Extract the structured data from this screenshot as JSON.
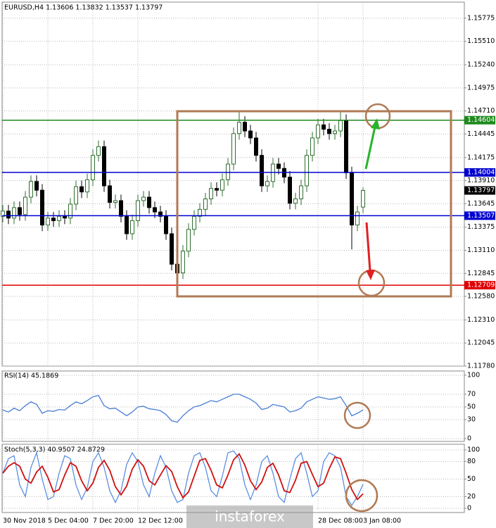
{
  "chart_data": [
    {
      "type": "candlestick",
      "title": "EURUSD,H4  1.13606 1.13832 1.13537 1.13797",
      "categories": [
        "30 Nov 2018",
        null,
        null,
        null,
        null,
        null,
        null,
        null,
        "5 Dec 04:00",
        null,
        null,
        null,
        null,
        null,
        null,
        null,
        "7 Dec 20:00",
        null,
        null,
        null,
        null,
        null,
        null,
        null,
        "12 Dec 12:00",
        null,
        null,
        null,
        null,
        null,
        null,
        null,
        null,
        null,
        null,
        null,
        null,
        null,
        null,
        null,
        null,
        null,
        null,
        null,
        null,
        null,
        null,
        null,
        null,
        null,
        null,
        null,
        null,
        null,
        null,
        null,
        "28 Dec 08:00",
        null,
        null,
        null,
        null,
        null,
        null,
        null,
        "3 Jan 08:00"
      ],
      "open": [
        1.135,
        1.1356,
        1.1348,
        1.136,
        1.1352,
        1.1372,
        1.139,
        1.138,
        1.134,
        1.1348,
        1.1345,
        1.135,
        1.1348,
        1.1364,
        1.1384,
        1.1378,
        1.1392,
        1.142,
        1.143,
        1.1385,
        1.1366,
        1.1368,
        1.135,
        1.133,
        1.1345,
        1.1368,
        1.1372,
        1.136,
        1.1355,
        1.135,
        1.133,
        1.1295,
        1.1285,
        1.131,
        1.1335,
        1.135,
        1.1358,
        1.137,
        1.1382,
        1.138,
        1.1392,
        1.141,
        1.1445,
        1.1458,
        1.1448,
        1.144,
        1.142,
        1.1385,
        1.139,
        1.141,
        1.1405,
        1.1395,
        1.1365,
        1.137,
        1.1385,
        1.142,
        1.144,
        1.1455,
        1.145,
        1.1445,
        1.1448,
        1.146,
        1.14,
        1.134,
        1.13606
      ],
      "high": [
        1.1363,
        1.1363,
        1.1367,
        1.1367,
        1.1379,
        1.1397,
        1.1397,
        1.1387,
        1.1355,
        1.1355,
        1.1357,
        1.1357,
        1.1371,
        1.1391,
        1.1391,
        1.1399,
        1.1427,
        1.1437,
        1.1437,
        1.1392,
        1.1375,
        1.1375,
        1.1357,
        1.1352,
        1.1375,
        1.1379,
        1.1379,
        1.1367,
        1.1362,
        1.1357,
        1.1337,
        1.1302,
        1.1317,
        1.1342,
        1.1357,
        1.1365,
        1.1377,
        1.1389,
        1.1389,
        1.1399,
        1.1417,
        1.1452,
        1.147,
        1.1465,
        1.1455,
        1.1447,
        1.1427,
        1.1397,
        1.1417,
        1.1417,
        1.1412,
        1.1402,
        1.1377,
        1.1392,
        1.1427,
        1.1447,
        1.1462,
        1.1462,
        1.1457,
        1.1455,
        1.147,
        1.1467,
        1.1407,
        1.1362,
        1.13832
      ],
      "low": [
        1.1343,
        1.1341,
        1.1341,
        1.1345,
        1.1345,
        1.1365,
        1.1373,
        1.1333,
        1.1333,
        1.1338,
        1.1338,
        1.1341,
        1.1341,
        1.1357,
        1.1371,
        1.1371,
        1.1385,
        1.1413,
        1.1378,
        1.1359,
        1.1359,
        1.1343,
        1.1323,
        1.1323,
        1.1338,
        1.1361,
        1.1353,
        1.1348,
        1.1343,
        1.1323,
        1.1288,
        1.1271,
        1.1278,
        1.1303,
        1.1328,
        1.1343,
        1.1351,
        1.1363,
        1.1373,
        1.1373,
        1.1385,
        1.1403,
        1.1438,
        1.1441,
        1.1433,
        1.1413,
        1.1378,
        1.1378,
        1.1383,
        1.1398,
        1.1388,
        1.1358,
        1.1358,
        1.1363,
        1.1378,
        1.1413,
        1.1433,
        1.1443,
        1.1438,
        1.1438,
        1.1441,
        1.1393,
        1.1312,
        1.1333,
        1.13537
      ],
      "close": [
        1.1356,
        1.1348,
        1.136,
        1.1352,
        1.1372,
        1.139,
        1.138,
        1.134,
        1.1348,
        1.1345,
        1.135,
        1.1348,
        1.1364,
        1.1384,
        1.1378,
        1.1392,
        1.142,
        1.143,
        1.1385,
        1.1366,
        1.1368,
        1.135,
        1.133,
        1.1345,
        1.1368,
        1.1372,
        1.136,
        1.1355,
        1.135,
        1.133,
        1.1295,
        1.1285,
        1.131,
        1.1335,
        1.135,
        1.1358,
        1.137,
        1.1382,
        1.138,
        1.1392,
        1.141,
        1.1445,
        1.1458,
        1.1448,
        1.144,
        1.142,
        1.1385,
        1.139,
        1.141,
        1.1405,
        1.1395,
        1.1365,
        1.137,
        1.1385,
        1.142,
        1.144,
        1.1455,
        1.145,
        1.1445,
        1.1448,
        1.146,
        1.14,
        1.134,
        1.1355,
        1.13797
      ],
      "up_color": "#2f6f2f",
      "down_color": "#000000",
      "levels": [
        {
          "value": 1.14604,
          "color": "#1e8a1e"
        },
        {
          "value": 1.14004,
          "color": "#0000d0"
        },
        {
          "value": 1.13507,
          "color": "#0000d0"
        },
        {
          "value": 1.12709,
          "color": "#e00000"
        }
      ],
      "current_price": 1.13797,
      "ylim": [
        1.1178,
        1.1596
      ],
      "yticks": [
        1.15775,
        {
          "value": 1.1551,
          "label": "1.15510"
        },
        {
          "value": 1.1524,
          "label": "1.15240"
        },
        1.14975,
        {
          "value": 1.1471,
          "label": "1.14710"
        },
        1.14445,
        1.14175,
        {
          "value": 1.1391,
          "label": "1.13910"
        },
        1.13645,
        1.13375,
        {
          "value": 1.1311,
          "label": "1.13110"
        },
        1.12845,
        {
          "value": 1.1258,
          "label": "1.12580"
        },
        {
          "value": 1.1231,
          "label": "1.12310"
        },
        1.12045,
        {
          "value": 1.1178,
          "label": "1.11780"
        }
      ],
      "grid": true
    },
    {
      "type": "line",
      "title": "RSI(14) 45.1869",
      "series": [
        {
          "color": "#4a7fd4",
          "values": [
            45,
            42,
            48,
            44,
            52,
            58,
            54,
            40,
            44,
            43,
            46,
            45,
            52,
            58,
            55,
            60,
            66,
            68,
            52,
            47,
            48,
            42,
            36,
            42,
            50,
            51,
            47,
            46,
            44,
            38,
            28,
            26,
            36,
            44,
            50,
            52,
            56,
            60,
            58,
            62,
            66,
            70,
            70,
            66,
            62,
            56,
            46,
            48,
            54,
            52,
            50,
            42,
            44,
            48,
            58,
            62,
            66,
            64,
            62,
            63,
            66,
            52,
            36,
            40,
            45.1869
          ]
        }
      ],
      "ylim": [
        0,
        100
      ],
      "yticks": [
        100,
        70,
        50,
        30,
        0
      ],
      "grid": true
    },
    {
      "type": "line",
      "title": "Stoch(5,3,3) 40.9507 24.8729",
      "series": [
        {
          "color": "#5b8fe0",
          "values": [
            60,
            85,
            90,
            40,
            20,
            70,
            95,
            50,
            15,
            20,
            60,
            90,
            85,
            40,
            15,
            35,
            80,
            95,
            70,
            30,
            10,
            30,
            75,
            95,
            80,
            40,
            20,
            60,
            90,
            70,
            30,
            10,
            15,
            60,
            90,
            95,
            70,
            30,
            20,
            55,
            95,
            98,
            85,
            40,
            15,
            40,
            80,
            90,
            60,
            20,
            10,
            50,
            85,
            95,
            60,
            20,
            30,
            80,
            95,
            90,
            70,
            20,
            5,
            20,
            40.9507
          ]
        },
        {
          "color": "#d01010",
          "values": [
            60,
            72,
            78,
            72,
            50,
            43,
            62,
            72,
            53,
            28,
            32,
            57,
            78,
            72,
            47,
            30,
            43,
            70,
            82,
            65,
            37,
            23,
            38,
            67,
            83,
            72,
            47,
            40,
            57,
            73,
            63,
            37,
            18,
            28,
            55,
            82,
            85,
            65,
            40,
            35,
            57,
            83,
            93,
            74,
            47,
            32,
            45,
            70,
            77,
            57,
            30,
            27,
            48,
            77,
            80,
            58,
            37,
            43,
            68,
            88,
            85,
            60,
            32,
            15,
            24.8729
          ]
        }
      ],
      "ylim": [
        0,
        100
      ],
      "yticks": [
        100,
        80,
        50,
        20,
        0
      ],
      "grid": true
    }
  ],
  "watermark": "instaforex"
}
